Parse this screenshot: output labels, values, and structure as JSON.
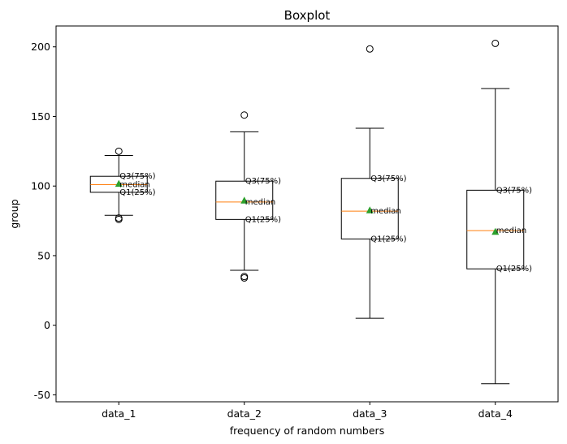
{
  "chart_data": {
    "type": "box",
    "title": "Boxplot",
    "xlabel": "frequency of random numbers",
    "ylabel": "group",
    "ylim": [
      -55,
      215
    ],
    "yticks": [
      -50,
      0,
      50,
      100,
      150,
      200
    ],
    "grid": false,
    "colors": {
      "box": "#000000",
      "median": "#ff7f0e",
      "mean_marker": "#2ca02c"
    },
    "annotation_labels": {
      "q3": "Q3(75%)",
      "median": "median",
      "q1": "Q1(25%)"
    },
    "categories": [
      "data_1",
      "data_2",
      "data_3",
      "data_4"
    ],
    "series": [
      {
        "category": "data_1",
        "whisker_low": 79,
        "q1": 95.5,
        "median": 101,
        "q3": 107,
        "whisker_high": 122,
        "mean": 101.5,
        "outliers": [
          125,
          77,
          76
        ]
      },
      {
        "category": "data_2",
        "whisker_low": 39.5,
        "q1": 76,
        "median": 88.5,
        "q3": 103.5,
        "whisker_high": 139,
        "mean": 89.5,
        "outliers": [
          151,
          35,
          34
        ]
      },
      {
        "category": "data_3",
        "whisker_low": 5,
        "q1": 62,
        "median": 82,
        "q3": 105.5,
        "whisker_high": 141.5,
        "mean": 82.5,
        "outliers": [
          198.5
        ]
      },
      {
        "category": "data_4",
        "whisker_low": -42,
        "q1": 40.5,
        "median": 68,
        "q3": 97,
        "whisker_high": 170,
        "mean": 67,
        "outliers": [
          202.5
        ]
      }
    ]
  }
}
